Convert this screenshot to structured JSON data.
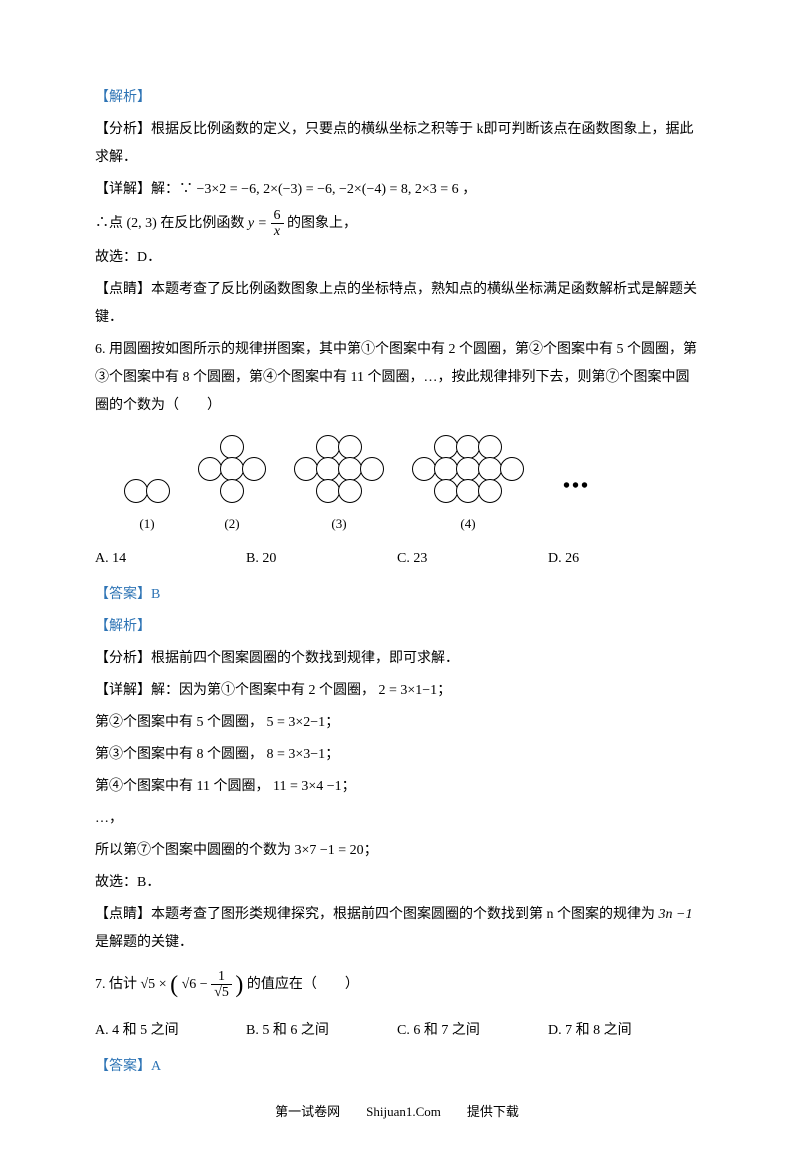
{
  "jiexi": "【解析】",
  "fenxi1": "【分析】根据反比例函数的定义，只要点的横纵坐标之积等于 k即可判断该点在函数图象上，据此求解．",
  "xiangjie1_prefix": "【详解】解：∵",
  "xiangjie1_math": "−3×2 = −6, 2×(−3) = −6, −2×(−4) = 8, 2×3 = 6",
  "xiangjie1_suffix": "，",
  "conclusion1_prefix": "∴点",
  "conclusion1_point": "(2, 3)",
  "conclusion1_mid": "在反比例函数",
  "conclusion1_eq_left": "y =",
  "conclusion1_num": "6",
  "conclusion1_den": "x",
  "conclusion1_suffix": "的图象上，",
  "guxuan1": "故选：D．",
  "dianjing1": "【点睛】本题考查了反比例函数图象上点的坐标特点，熟知点的横纵坐标满足函数解析式是解题关键．",
  "q6": "6. 用圆圈按如图所示的规律拼图案，其中第①个图案中有 2 个圆圈，第②个图案中有 5 个圆圈，第③个图案中有 8 个圆圈，第④个图案中有 11 个圆圈，…，按此规律排列下去，则第⑦个图案中圆圈的个数为（　　）",
  "fig_labels": {
    "f1": "(1)",
    "f2": "(2)",
    "f3": "(3)",
    "f4": "(4)"
  },
  "q6_options": {
    "a": "A. 14",
    "b": "B. 20",
    "c": "C. 23",
    "d": "D. 26"
  },
  "answer6": "【答案】B",
  "fenxi6": "【分析】根据前四个图案圆圈的个数找到规律，即可求解．",
  "xiangjie6_0": "【详解】解：因为第①个图案中有 2 个圆圈，",
  "xiangjie6_0_math": "2 = 3×1−1",
  "xiangjie6_1": "第②个图案中有 5 个圆圈，",
  "xiangjie6_1_math": "5 = 3×2−1",
  "xiangjie6_2": "第③个图案中有 8 个圆圈，",
  "xiangjie6_2_math": "8 = 3×3−1",
  "xiangjie6_3": "第④个图案中有 11 个圆圈，",
  "xiangjie6_3_math": "11 = 3×4 −1",
  "xiangjie6_dots": "…，",
  "xiangjie6_4": "所以第⑦个图案中圆圈的个数为",
  "xiangjie6_4_math": "3×7 −1 = 20",
  "guxuan6": "故选：B．",
  "dianjing6_prefix": "【点睛】本题考查了图形类规律探究，根据前四个图案圆圈的个数找到第 n 个图案的规律为",
  "dianjing6_math": "3n −1",
  "dianjing6_suffix": "是解题的关键．",
  "q7_prefix": "7. 估计",
  "q7_sqrt5": "√5",
  "q7_times": "×",
  "q7_sqrt6": "√6",
  "q7_minus": "−",
  "q7_frac_num": "1",
  "q7_frac_den": "√5",
  "q7_suffix": "的值应在（　　）",
  "q7_options": {
    "a": "A. 4 和 5 之间",
    "b": "B. 5 和 6 之间",
    "c": "C. 6 和 7 之间",
    "d": "D. 7 和 8 之间"
  },
  "answer7": "【答案】A",
  "footer": "第一试卷网　　Shijuan1.Com　　提供下载"
}
